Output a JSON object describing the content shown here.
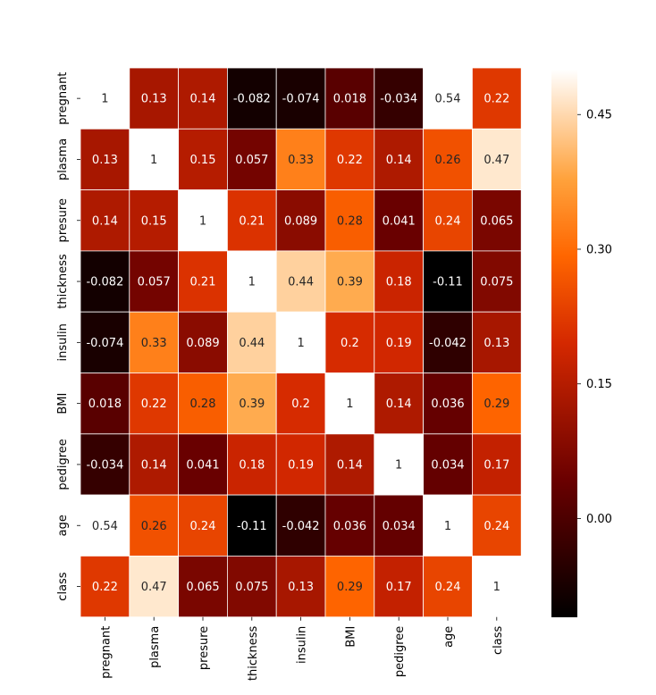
{
  "chart_data": {
    "type": "heatmap",
    "title": "",
    "xlabel": "",
    "ylabel": "",
    "row_labels": [
      "pregnant",
      "plasma",
      "presure",
      "thickness",
      "insulin",
      "BMI",
      "pedigree",
      "age",
      "class"
    ],
    "col_labels": [
      "pregnant",
      "plasma",
      "presure",
      "thickness",
      "insulin",
      "BMI",
      "pedigree",
      "age",
      "class"
    ],
    "cell_labels": [
      [
        "1",
        "0.13",
        "0.14",
        "-0.082",
        "-0.074",
        "0.018",
        "-0.034",
        "0.54",
        "0.22"
      ],
      [
        "0.13",
        "1",
        "0.15",
        "0.057",
        "0.33",
        "0.22",
        "0.14",
        "0.26",
        "0.47"
      ],
      [
        "0.14",
        "0.15",
        "1",
        "0.21",
        "0.089",
        "0.28",
        "0.041",
        "0.24",
        "0.065"
      ],
      [
        "-0.082",
        "0.057",
        "0.21",
        "1",
        "0.44",
        "0.39",
        "0.18",
        "-0.11",
        "0.075"
      ],
      [
        "-0.074",
        "0.33",
        "0.089",
        "0.44",
        "1",
        "0.2",
        "0.19",
        "-0.042",
        "0.13"
      ],
      [
        "0.018",
        "0.22",
        "0.28",
        "0.39",
        "0.2",
        "1",
        "0.14",
        "0.036",
        "0.29"
      ],
      [
        "-0.034",
        "0.14",
        "0.041",
        "0.18",
        "0.19",
        "0.14",
        "1",
        "0.034",
        "0.17"
      ],
      [
        "0.54",
        "0.26",
        "0.24",
        "-0.11",
        "-0.042",
        "0.036",
        "0.034",
        "1",
        "0.24"
      ],
      [
        "0.22",
        "0.47",
        "0.065",
        "0.075",
        "0.13",
        "0.29",
        "0.17",
        "0.24",
        "1"
      ]
    ],
    "colormap": "gist_heat",
    "vmin": -0.11,
    "vmax": 0.5,
    "colorbar_ticks": [
      0.0,
      0.15,
      0.3,
      0.45
    ],
    "colorbar_tick_labels": [
      "0.00",
      "0.15",
      "0.30",
      "0.45"
    ],
    "grid_line_color": "#ffffff"
  }
}
